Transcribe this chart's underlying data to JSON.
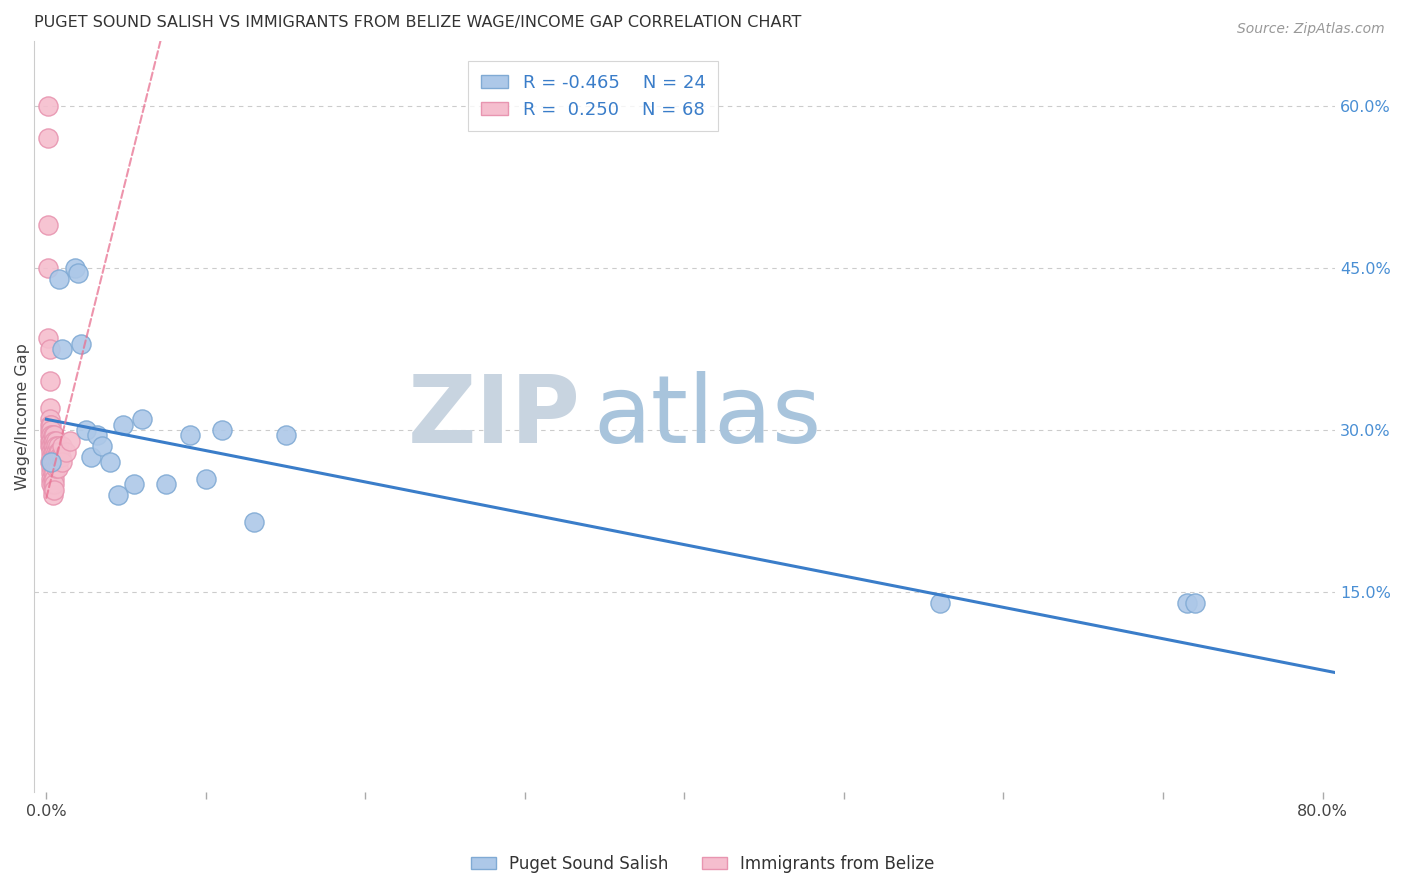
{
  "title": "PUGET SOUND SALISH VS IMMIGRANTS FROM BELIZE WAGE/INCOME GAP CORRELATION CHART",
  "source": "Source: ZipAtlas.com",
  "ylabel": "Wage/Income Gap",
  "xmin": -0.008,
  "xmax": 0.808,
  "ymin": -0.035,
  "ymax": 0.66,
  "right_yticks": [
    0.15,
    0.3,
    0.45,
    0.6
  ],
  "right_ytick_labels": [
    "15.0%",
    "30.0%",
    "45.0%",
    "60.0%"
  ],
  "xticks": [
    0.0,
    0.2,
    0.4,
    0.6,
    0.8
  ],
  "xtick_labels": [
    "0.0%",
    "",
    "",
    "",
    "80.0%"
  ],
  "blue_R": -0.465,
  "blue_N": 24,
  "pink_R": 0.25,
  "pink_N": 68,
  "blue_color": "#adc8e8",
  "pink_color": "#f5bece",
  "blue_edge": "#80aad4",
  "pink_edge": "#e895b0",
  "trend_blue_color": "#3a7dc9",
  "trend_pink_color": "#e87090",
  "background": "#ffffff",
  "grid_color": "#cccccc",
  "blue_x": [
    0.003,
    0.008,
    0.01,
    0.018,
    0.02,
    0.022,
    0.025,
    0.028,
    0.032,
    0.035,
    0.04,
    0.045,
    0.048,
    0.055,
    0.06,
    0.075,
    0.09,
    0.1,
    0.11,
    0.13,
    0.15,
    0.56,
    0.715,
    0.72
  ],
  "blue_y": [
    0.27,
    0.44,
    0.375,
    0.45,
    0.445,
    0.38,
    0.3,
    0.275,
    0.295,
    0.285,
    0.27,
    0.24,
    0.305,
    0.25,
    0.31,
    0.25,
    0.295,
    0.255,
    0.3,
    0.215,
    0.295,
    0.14,
    0.14,
    0.14
  ],
  "pink_x": [
    0.001,
    0.001,
    0.001,
    0.001,
    0.001,
    0.002,
    0.002,
    0.002,
    0.002,
    0.002,
    0.002,
    0.002,
    0.002,
    0.002,
    0.002,
    0.003,
    0.003,
    0.003,
    0.003,
    0.003,
    0.003,
    0.003,
    0.003,
    0.003,
    0.003,
    0.003,
    0.003,
    0.004,
    0.004,
    0.004,
    0.004,
    0.004,
    0.004,
    0.004,
    0.004,
    0.004,
    0.004,
    0.004,
    0.004,
    0.005,
    0.005,
    0.005,
    0.005,
    0.005,
    0.005,
    0.005,
    0.005,
    0.005,
    0.005,
    0.005,
    0.006,
    0.006,
    0.006,
    0.006,
    0.006,
    0.006,
    0.007,
    0.007,
    0.007,
    0.007,
    0.007,
    0.008,
    0.008,
    0.009,
    0.01,
    0.01,
    0.012,
    0.015
  ],
  "pink_y": [
    0.6,
    0.57,
    0.49,
    0.45,
    0.385,
    0.375,
    0.345,
    0.32,
    0.31,
    0.305,
    0.3,
    0.295,
    0.29,
    0.285,
    0.27,
    0.305,
    0.3,
    0.295,
    0.29,
    0.285,
    0.28,
    0.275,
    0.27,
    0.265,
    0.26,
    0.255,
    0.25,
    0.295,
    0.29,
    0.285,
    0.28,
    0.275,
    0.27,
    0.265,
    0.26,
    0.255,
    0.25,
    0.245,
    0.24,
    0.295,
    0.29,
    0.285,
    0.28,
    0.275,
    0.27,
    0.265,
    0.26,
    0.255,
    0.25,
    0.245,
    0.29,
    0.285,
    0.28,
    0.275,
    0.27,
    0.265,
    0.285,
    0.28,
    0.275,
    0.27,
    0.265,
    0.28,
    0.275,
    0.275,
    0.285,
    0.27,
    0.28,
    0.29
  ],
  "watermark_zip_color": "#c0d0e8",
  "watermark_atlas_color": "#9ab8d8",
  "zip_fontsize": 70,
  "atlas_fontsize": 70
}
